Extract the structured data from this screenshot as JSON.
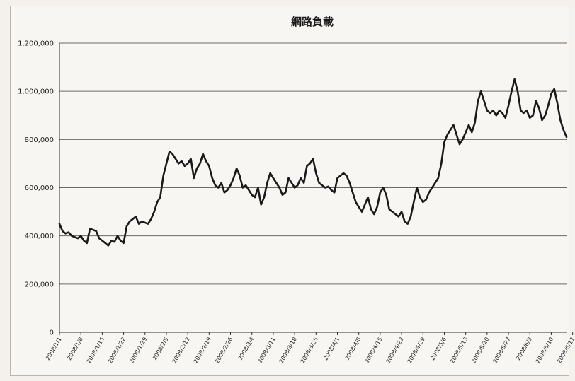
{
  "chart_data": {
    "type": "line",
    "title": "網路負載",
    "xlabel": "",
    "ylabel": "",
    "ylim": [
      0,
      1200000
    ],
    "yticks": [
      {
        "value": 0,
        "label": "0"
      },
      {
        "value": 200000,
        "label": "200,000"
      },
      {
        "value": 400000,
        "label": "400,000"
      },
      {
        "value": 600000,
        "label": "600,000"
      },
      {
        "value": 800000,
        "label": "800,000"
      },
      {
        "value": 1000000,
        "label": "1,000,000"
      },
      {
        "value": 1200000,
        "label": "1,200,000"
      }
    ],
    "xticks": [
      {
        "index": 0,
        "label": "2008/1/1"
      },
      {
        "index": 7,
        "label": "2008/1/8"
      },
      {
        "index": 14,
        "label": "2008/1/15"
      },
      {
        "index": 21,
        "label": "2008/1/22"
      },
      {
        "index": 28,
        "label": "2008/1/29"
      },
      {
        "index": 35,
        "label": "2008/2/5"
      },
      {
        "index": 42,
        "label": "2008/2/12"
      },
      {
        "index": 49,
        "label": "2008/2/19"
      },
      {
        "index": 56,
        "label": "2008/2/26"
      },
      {
        "index": 63,
        "label": "2008/3/4"
      },
      {
        "index": 70,
        "label": "2008/3/11"
      },
      {
        "index": 77,
        "label": "2008/3/18"
      },
      {
        "index": 84,
        "label": "2008/3/25"
      },
      {
        "index": 91,
        "label": "2008/4/1"
      },
      {
        "index": 98,
        "label": "2008/4/8"
      },
      {
        "index": 105,
        "label": "2008/4/15"
      },
      {
        "index": 112,
        "label": "2008/4/22"
      },
      {
        "index": 119,
        "label": "2008/4/29"
      },
      {
        "index": 126,
        "label": "2008/5/6"
      },
      {
        "index": 133,
        "label": "2008/5/13"
      },
      {
        "index": 140,
        "label": "2008/5/20"
      },
      {
        "index": 147,
        "label": "2008/5/27"
      },
      {
        "index": 154,
        "label": "2008/6/3"
      },
      {
        "index": 161,
        "label": "2008/6/10"
      },
      {
        "index": 168,
        "label": "2008/6/17"
      }
    ],
    "grid": "horizontal",
    "legend": "none",
    "line_color": "#1a1a1a",
    "series": [
      {
        "values": [
          450000,
          420000,
          410000,
          415000,
          400000,
          395000,
          390000,
          400000,
          380000,
          370000,
          430000,
          425000,
          420000,
          390000,
          380000,
          370000,
          360000,
          380000,
          375000,
          400000,
          380000,
          370000,
          440000,
          460000,
          470000,
          480000,
          450000,
          460000,
          455000,
          450000,
          470000,
          500000,
          540000,
          560000,
          650000,
          700000,
          750000,
          740000,
          720000,
          700000,
          710000,
          690000,
          700000,
          720000,
          640000,
          680000,
          700000,
          740000,
          710000,
          690000,
          640000,
          610000,
          600000,
          620000,
          580000,
          590000,
          610000,
          640000,
          680000,
          650000,
          600000,
          610000,
          590000,
          570000,
          560000,
          600000,
          530000,
          560000,
          620000,
          660000,
          640000,
          620000,
          600000,
          570000,
          580000,
          640000,
          620000,
          600000,
          610000,
          640000,
          620000,
          690000,
          700000,
          720000,
          660000,
          620000,
          610000,
          600000,
          605000,
          590000,
          580000,
          640000,
          650000,
          660000,
          650000,
          620000,
          580000,
          540000,
          520000,
          500000,
          530000,
          560000,
          510000,
          490000,
          520000,
          580000,
          600000,
          570000,
          510000,
          500000,
          490000,
          480000,
          500000,
          460000,
          450000,
          480000,
          540000,
          600000,
          560000,
          540000,
          550000,
          580000,
          600000,
          620000,
          640000,
          700000,
          790000,
          820000,
          840000,
          860000,
          820000,
          780000,
          800000,
          830000,
          860000,
          830000,
          870000,
          960000,
          1000000,
          960000,
          920000,
          910000,
          920000,
          900000,
          920000,
          910000,
          890000,
          940000,
          1000000,
          1050000,
          1000000,
          920000,
          910000,
          920000,
          890000,
          900000,
          960000,
          930000,
          880000,
          900000,
          940000,
          990000,
          1010000,
          950000,
          880000,
          840000,
          810000
        ]
      }
    ]
  }
}
